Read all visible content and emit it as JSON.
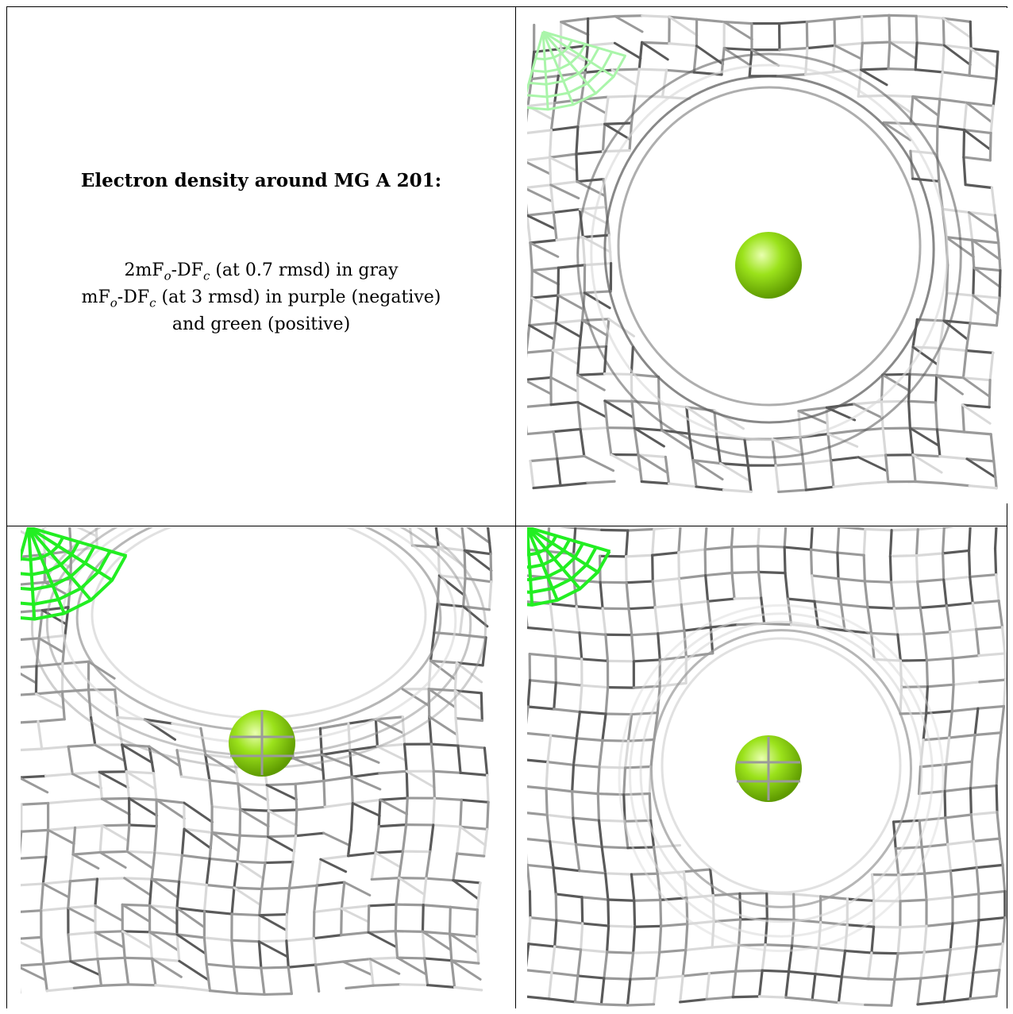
{
  "caption": {
    "title": "Electron density around MG A 201:",
    "line1_prefix": "2mF",
    "line1_sub1": "o",
    "line1_mid": "-DF",
    "line1_sub2": "c",
    "line1_suffix": " (at 0.7 rmsd) in gray",
    "line2_prefix": "mF",
    "line2_sub1": "o",
    "line2_mid": "-DF",
    "line2_sub2": "c",
    "line2_suffix": " (at 3 rmsd) in purple (negative)",
    "line3": "and green (positive)"
  },
  "colors": {
    "mesh_gray": "#9a9a9a",
    "mesh_dark": "#5a5a5a",
    "mesh_light": "#d9d9d9",
    "positive_green": "#22ee22",
    "positive_green_faded": "#aaf5aa",
    "ion_green": "#9be21b",
    "ion_highlight": "#e9ffb0",
    "ion_shadow": "#5e9a00"
  },
  "icons": {
    "ion": "magnesium-ion-sphere-icon"
  }
}
